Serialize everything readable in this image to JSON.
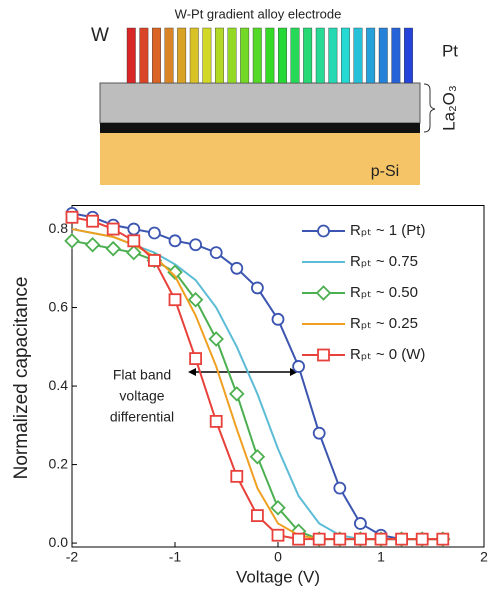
{
  "diagram": {
    "title": "W-Pt gradient alloy electrode",
    "left_label": "W",
    "right_label": "Pt",
    "oxide_label": "La₂O₃",
    "substrate_label": "p-Si"
  },
  "chart_data": {
    "type": "line",
    "xlabel": "Voltage (V)",
    "ylabel": "Normalized capacitance",
    "annotation": [
      "Flat band",
      "voltage",
      "differential"
    ],
    "x": [
      -2,
      -1.8,
      -1.6,
      -1.4,
      -1.2,
      -1.0,
      -0.8,
      -0.6,
      -0.4,
      -0.2,
      0.0,
      0.2,
      0.4,
      0.6,
      0.8,
      1.0,
      1.2,
      1.4,
      1.6
    ],
    "series": [
      {
        "name": "Rₚₜ ~ 1 (Pt)",
        "color": "#3b55b0",
        "marker": "circle",
        "values": [
          0.84,
          0.83,
          0.81,
          0.8,
          0.79,
          0.77,
          0.76,
          0.74,
          0.7,
          0.65,
          0.57,
          0.45,
          0.28,
          0.14,
          0.05,
          0.02,
          0.01,
          0.01,
          0.01
        ]
      },
      {
        "name": "Rₚₜ ~ 0.75",
        "color": "#5cbcd6",
        "marker": null,
        "values": [
          0.8,
          0.79,
          0.78,
          0.76,
          0.74,
          0.71,
          0.67,
          0.6,
          0.5,
          0.38,
          0.24,
          0.12,
          0.05,
          0.02,
          0.01,
          0.01,
          0.01,
          0.01,
          0.01
        ]
      },
      {
        "name": "Rₚₜ ~ 0.50",
        "color": "#4caf50",
        "marker": "diamond",
        "values": [
          0.77,
          0.76,
          0.75,
          0.74,
          0.72,
          0.69,
          0.62,
          0.52,
          0.38,
          0.22,
          0.09,
          0.03,
          0.01,
          0.01,
          0.01,
          0.01,
          0.01,
          0.01,
          0.01
        ]
      },
      {
        "name": "Rₚₜ ~ 0.25",
        "color": "#f0a020",
        "marker": null,
        "values": [
          0.8,
          0.79,
          0.78,
          0.76,
          0.73,
          0.68,
          0.58,
          0.45,
          0.29,
          0.14,
          0.05,
          0.02,
          0.01,
          0.01,
          0.01,
          0.01,
          0.01,
          0.01,
          0.01
        ]
      },
      {
        "name": "Rₚₜ ~ 0 (W)",
        "color": "#e8403a",
        "marker": "square",
        "values": [
          0.83,
          0.82,
          0.8,
          0.77,
          0.72,
          0.62,
          0.47,
          0.31,
          0.17,
          0.07,
          0.02,
          0.01,
          0.01,
          0.01,
          0.01,
          0.01,
          0.01,
          0.01,
          0.01
        ]
      }
    ],
    "xlim": [
      -2,
      2
    ],
    "ylim": [
      -0.01,
      0.86
    ],
    "xticks": [
      -2,
      -1,
      0,
      1,
      2
    ],
    "yticks": [
      {
        "value": 0,
        "label": "0.0"
      },
      0.2,
      0.4,
      0.6,
      0.8
    ],
    "legend": "upper right"
  }
}
